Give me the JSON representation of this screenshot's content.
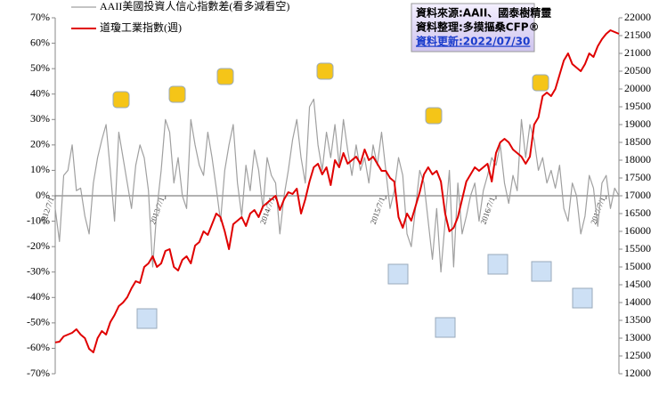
{
  "chart_data": {
    "type": "line",
    "legend": "upper left",
    "annotations": [
      "資料來源:AAII、國泰樹精靈",
      "資料整理:多摸摳桑CFP®",
      "資料更新:2022/07/30"
    ],
    "categories": [
      "2012/7/1",
      null,
      null,
      null,
      null,
      null,
      null,
      null,
      null,
      null,
      null,
      null,
      null,
      null,
      null,
      null,
      null,
      null,
      null,
      null,
      null,
      null,
      null,
      null,
      null,
      null,
      "2013/7/1",
      null,
      null,
      null,
      null,
      null,
      null,
      null,
      null,
      null,
      null,
      null,
      null,
      null,
      null,
      null,
      null,
      null,
      null,
      null,
      null,
      null,
      null,
      null,
      null,
      null,
      "2014/7/1",
      null,
      null,
      null,
      null,
      null,
      null,
      null,
      null,
      null,
      null,
      null,
      null,
      null,
      null,
      null,
      null,
      null,
      null,
      null,
      null,
      null,
      null,
      null,
      null,
      null,
      "2015/7/1",
      null,
      null,
      null,
      null,
      null,
      null,
      null,
      null,
      null,
      null,
      null,
      null,
      null,
      null,
      null,
      null,
      null,
      null,
      null,
      null,
      null,
      null,
      null,
      null,
      null,
      "2016/7/1",
      null,
      null,
      null,
      null,
      null,
      null,
      null,
      null,
      null,
      null,
      null,
      null,
      null,
      null,
      null,
      null,
      null,
      null,
      null,
      null,
      null,
      null,
      null,
      null,
      null,
      "2017/7/1",
      null,
      null,
      null
    ],
    "series": [
      {
        "name": "AAII美國投資人信心指數差(看多減看空)",
        "color": "#a0a0a0",
        "axis": "y",
        "values": [
          -5,
          -18,
          8,
          10,
          20,
          2,
          3,
          -8,
          -15,
          5,
          15,
          22,
          28,
          10,
          -10,
          25,
          15,
          5,
          -5,
          12,
          20,
          15,
          2,
          -28,
          -5,
          10,
          30,
          25,
          5,
          15,
          0,
          -5,
          30,
          20,
          12,
          8,
          25,
          15,
          3,
          -10,
          10,
          20,
          28,
          5,
          -8,
          12,
          2,
          18,
          10,
          -5,
          15,
          8,
          5,
          -15,
          0,
          10,
          22,
          30,
          15,
          5,
          35,
          38,
          20,
          10,
          25,
          15,
          28,
          12,
          30,
          18,
          8,
          20,
          10,
          15,
          5,
          20,
          12,
          25,
          10,
          -5,
          2,
          15,
          8,
          -15,
          -20,
          -5,
          10,
          5,
          -10,
          -25,
          -5,
          -30,
          -10,
          10,
          -28,
          5,
          -15,
          -8,
          0,
          5,
          -10,
          2,
          8,
          15,
          12,
          20,
          5,
          -3,
          8,
          2,
          30,
          15,
          28,
          22,
          10,
          15,
          5,
          10,
          3,
          12,
          -5,
          -10,
          5,
          0,
          -15,
          -8,
          8,
          3,
          -12,
          5,
          8,
          -5,
          3,
          0
        ]
      },
      {
        "name": "道瓊工業指數(週)",
        "color": "#e00000",
        "axis": "y2",
        "values": [
          12880,
          12900,
          13050,
          13100,
          13150,
          13250,
          13100,
          13000,
          12700,
          12600,
          13000,
          13200,
          13100,
          13450,
          13650,
          13900,
          14000,
          14150,
          14400,
          14600,
          14550,
          15000,
          15100,
          15300,
          15000,
          15100,
          15450,
          15500,
          15000,
          14900,
          15200,
          15300,
          15100,
          15600,
          15700,
          16000,
          15900,
          16200,
          16500,
          16400,
          16000,
          15500,
          16200,
          16300,
          16400,
          16150,
          16500,
          16600,
          16400,
          16700,
          16800,
          16900,
          17000,
          16600,
          16900,
          17100,
          17050,
          17200,
          16500,
          16900,
          17400,
          17800,
          17900,
          17600,
          17800,
          17300,
          18000,
          17800,
          18200,
          17900,
          18000,
          18100,
          17900,
          18300,
          18000,
          18100,
          17900,
          17700,
          17700,
          17500,
          17400,
          16400,
          16100,
          16500,
          16300,
          16700,
          17100,
          17600,
          17800,
          17600,
          17700,
          17400,
          16500,
          16000,
          16100,
          16400,
          16900,
          17400,
          17600,
          17800,
          17700,
          17800,
          17900,
          17400,
          18200,
          18500,
          18600,
          18500,
          18300,
          18200,
          18100,
          17900,
          18100,
          19000,
          19200,
          19800,
          19900,
          19800,
          20000,
          20400,
          20800,
          21000,
          20700,
          20600,
          20500,
          20700,
          21000,
          20900,
          21200,
          21400,
          21550,
          21650,
          21600,
          21550
        ]
      }
    ],
    "ylim": [
      -70,
      70
    ],
    "yticks": [
      {
        "value": -70,
        "label": "-70%"
      },
      {
        "value": -60,
        "label": "-60%"
      },
      {
        "value": -50,
        "label": "-50%"
      },
      {
        "value": -40,
        "label": "-40%"
      },
      {
        "value": -30,
        "label": "-30%"
      },
      {
        "value": -20,
        "label": "-20%"
      },
      {
        "value": -10,
        "label": "-10%"
      },
      {
        "value": 0,
        "label": "0%"
      },
      {
        "value": 10,
        "label": "10%"
      },
      {
        "value": 20,
        "label": "20%"
      },
      {
        "value": 30,
        "label": "30%"
      },
      {
        "value": 40,
        "label": "40%"
      },
      {
        "value": 50,
        "label": "50%"
      },
      {
        "value": 60,
        "label": "60%"
      },
      {
        "value": 70,
        "label": "70%"
      }
    ],
    "y2lim": [
      12000,
      22000
    ],
    "y2ticks": [
      12000,
      12500,
      13000,
      13500,
      14000,
      14500,
      15000,
      15500,
      16000,
      16500,
      17000,
      17500,
      18000,
      18500,
      19000,
      19500,
      20000,
      20500,
      21000,
      21500,
      22000
    ]
  }
}
